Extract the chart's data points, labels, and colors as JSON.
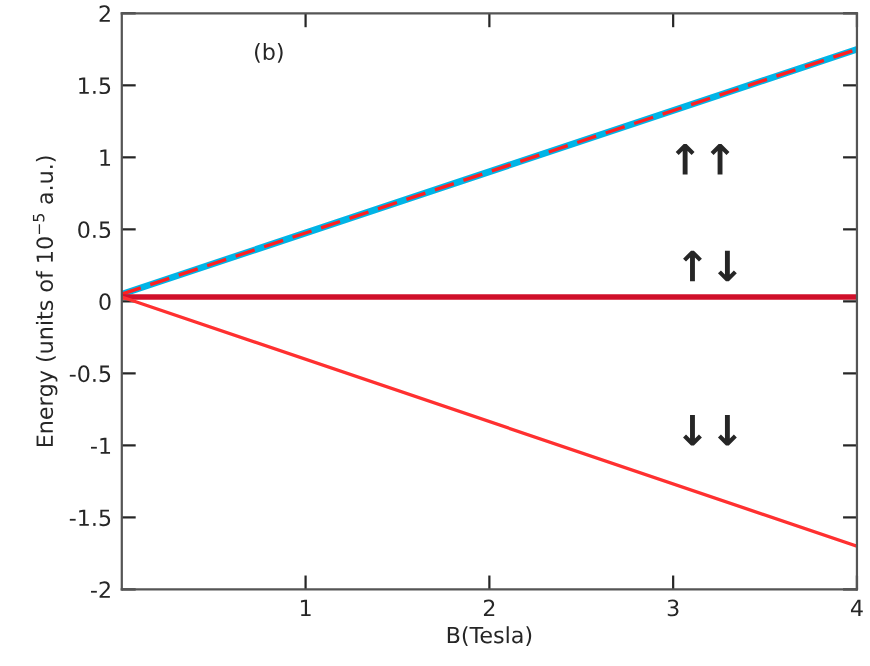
{
  "chart_data": {
    "type": "line",
    "xlabel": "B(Tesla)",
    "ylabel": "Energy (units of 10$^{−5}$ a.u.)",
    "x": [
      0,
      4
    ],
    "series": [
      {
        "color": "#00b4e6",
        "values": [
          0.05,
          1.75
        ]
      },
      {
        "color": "#ff2020",
        "values": [
          0.05,
          1.75
        ],
        "line_style": "dashed"
      },
      {
        "color": "#d0102a",
        "values": [
          0.03,
          0.03
        ]
      },
      {
        "color": "#ff3030",
        "values": [
          0.03,
          -1.7
        ]
      }
    ],
    "xlim": [
      0,
      4
    ],
    "xticks": [
      1,
      2,
      3,
      4
    ],
    "ylim": [
      -2,
      2
    ],
    "yticks": [
      -2,
      -1.5,
      -1,
      -0.5,
      0,
      0.5,
      1,
      1.5,
      2
    ],
    "annotations": [
      "(b)",
      "↑↑",
      "↑↓",
      "↓↓"
    ],
    "grid": false,
    "legend": false,
    "marker": "none"
  }
}
